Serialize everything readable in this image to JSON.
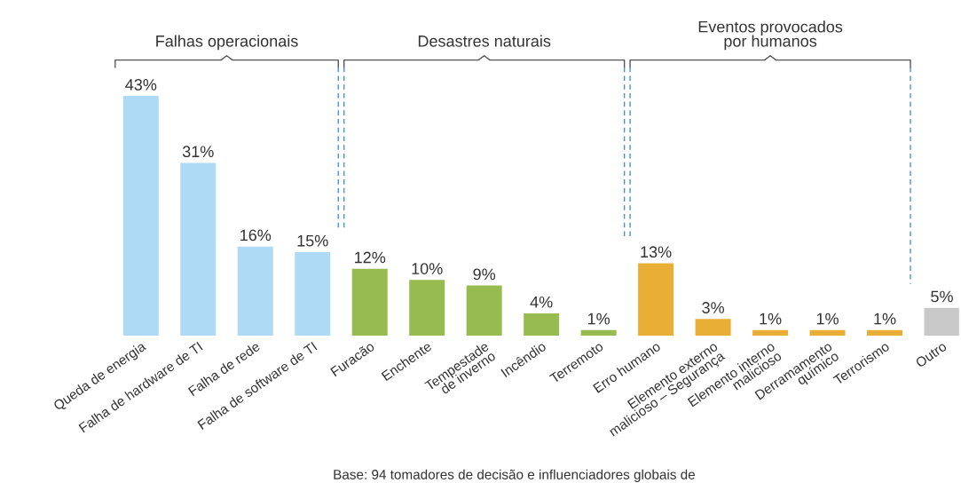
{
  "chart_data": {
    "type": "bar",
    "categories": [
      "Queda de energia",
      "Falha de hardware de TI",
      "Falha de rede",
      "Falha de software de TI",
      "Furacão",
      "Enchente",
      "Tempestade\nde inverno",
      "Incêndio",
      "Terremoto",
      "Erro humano",
      "Elemento externo\nmalicioso – Segurança",
      "Elemento interno\nmalicioso",
      "Derramamento\nquímico",
      "Terrorismo",
      "Outro"
    ],
    "values": [
      43,
      31,
      16,
      15,
      12,
      10,
      9,
      4,
      1,
      13,
      3,
      1,
      1,
      1,
      5
    ],
    "value_labels": [
      "43%",
      "31%",
      "16%",
      "15%",
      "12%",
      "10%",
      "9%",
      "4%",
      "1%",
      "13%",
      "3%",
      "1%",
      "1%",
      "1%",
      "5%"
    ],
    "colors": [
      "#aedaf5",
      "#aedaf5",
      "#aedaf5",
      "#aedaf5",
      "#98bb50",
      "#98bb50",
      "#98bb50",
      "#98bb50",
      "#98bb50",
      "#e8ae35",
      "#e8ae35",
      "#e8ae35",
      "#e8ae35",
      "#e8ae35",
      "#c8c8c8"
    ],
    "annotations": [
      "Falhas operacionais",
      "Desastres naturais",
      "Eventos provocados\npor humanos",
      "Base: 94 tomadores de decisão e influenciadores globais de"
    ],
    "grid": false,
    "legend": false
  }
}
